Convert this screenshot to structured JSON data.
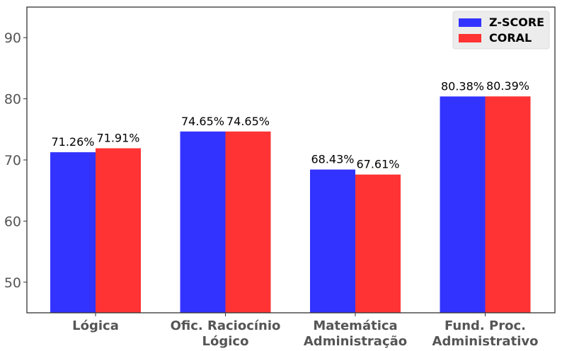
{
  "chart_data": {
    "type": "bar",
    "categories": [
      [
        "Lógica"
      ],
      [
        "Ofic. Raciocínio",
        "Lógico"
      ],
      [
        "Matemática",
        "Administração"
      ],
      [
        "Fund. Proc.",
        "Administrativo"
      ]
    ],
    "series": [
      {
        "name": "Z-SCORE",
        "color": "#3333ff",
        "values": [
          71.26,
          74.65,
          68.43,
          80.38
        ],
        "labels": [
          "71.26%",
          "74.65%",
          "68.43%",
          "80.38%"
        ]
      },
      {
        "name": "CORAL",
        "color": "#ff3333",
        "values": [
          71.91,
          74.65,
          67.61,
          80.39
        ],
        "labels": [
          "71.91%",
          "74.65%",
          "67.61%",
          "80.39%"
        ]
      }
    ],
    "title": "",
    "xlabel": "",
    "ylabel": "",
    "ylim": [
      45,
      95
    ],
    "yticks": [
      50,
      60,
      70,
      80,
      90
    ],
    "grid": false,
    "legend_position": "top-right"
  }
}
